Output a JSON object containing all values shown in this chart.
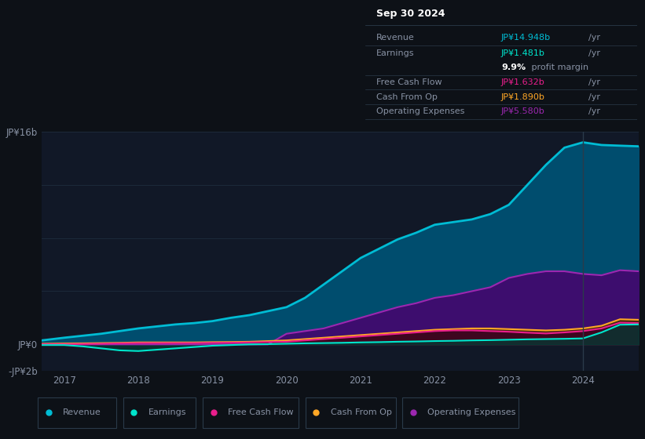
{
  "bg_color": "#0d1117",
  "plot_bg_color": "#111827",
  "grid_color": "#1e2d3d",
  "text_color": "#8892a4",
  "x_years": [
    2016.7,
    2017.0,
    2017.25,
    2017.5,
    2017.75,
    2018.0,
    2018.25,
    2018.5,
    2018.75,
    2019.0,
    2019.25,
    2019.5,
    2019.75,
    2020.0,
    2020.25,
    2020.5,
    2020.75,
    2021.0,
    2021.25,
    2021.5,
    2021.75,
    2022.0,
    2022.25,
    2022.5,
    2022.75,
    2023.0,
    2023.25,
    2023.5,
    2023.75,
    2024.0,
    2024.25,
    2024.5,
    2024.75
  ],
  "revenue": [
    0.3,
    0.5,
    0.65,
    0.8,
    1.0,
    1.2,
    1.35,
    1.5,
    1.6,
    1.75,
    2.0,
    2.2,
    2.5,
    2.8,
    3.5,
    4.5,
    5.5,
    6.5,
    7.2,
    7.9,
    8.4,
    9.0,
    9.2,
    9.4,
    9.8,
    10.5,
    12.0,
    13.5,
    14.8,
    15.2,
    15.0,
    14.948,
    14.9
  ],
  "earnings": [
    -0.05,
    -0.05,
    -0.15,
    -0.3,
    -0.45,
    -0.5,
    -0.4,
    -0.3,
    -0.2,
    -0.1,
    -0.05,
    0.0,
    0.02,
    0.05,
    0.08,
    0.1,
    0.12,
    0.15,
    0.17,
    0.2,
    0.22,
    0.25,
    0.27,
    0.3,
    0.32,
    0.35,
    0.38,
    0.4,
    0.42,
    0.45,
    0.9,
    1.481,
    1.5
  ],
  "free_cash_flow": [
    0.02,
    0.02,
    0.03,
    0.05,
    0.08,
    0.1,
    0.1,
    0.1,
    0.1,
    0.12,
    0.13,
    0.15,
    0.18,
    0.2,
    0.3,
    0.4,
    0.5,
    0.6,
    0.7,
    0.8,
    0.9,
    1.0,
    1.05,
    1.05,
    1.0,
    0.95,
    0.88,
    0.82,
    0.9,
    1.0,
    1.2,
    1.632,
    1.6
  ],
  "cash_from_op": [
    0.05,
    0.07,
    0.08,
    0.1,
    0.12,
    0.15,
    0.15,
    0.15,
    0.15,
    0.17,
    0.18,
    0.2,
    0.25,
    0.3,
    0.4,
    0.5,
    0.6,
    0.7,
    0.8,
    0.9,
    1.0,
    1.1,
    1.15,
    1.2,
    1.2,
    1.15,
    1.1,
    1.05,
    1.1,
    1.2,
    1.4,
    1.89,
    1.85
  ],
  "op_expenses": [
    0.0,
    0.0,
    0.0,
    0.0,
    0.0,
    0.0,
    0.0,
    0.0,
    0.0,
    0.0,
    0.0,
    0.0,
    0.0,
    0.8,
    1.0,
    1.2,
    1.6,
    2.0,
    2.4,
    2.8,
    3.1,
    3.5,
    3.7,
    4.0,
    4.3,
    5.0,
    5.3,
    5.5,
    5.5,
    5.3,
    5.2,
    5.58,
    5.5
  ],
  "revenue_color": "#00bcd4",
  "earnings_color": "#00e5cc",
  "free_cash_flow_color": "#e91e8c",
  "cash_from_op_color": "#ffa726",
  "op_expenses_color": "#9c27b0",
  "revenue_fill": "#004d6e",
  "op_expenses_fill": "#3d0d6e",
  "free_cash_flow_fill": "#3d0022",
  "cash_from_op_fill": "#4a2e00",
  "earnings_fill": "#003d35",
  "ylim_min": -2,
  "ylim_max": 16,
  "ylabel_top": "JP¥16b",
  "ylabel_zero": "JP¥0",
  "ylabel_neg": "-JP¥2b",
  "x_ticks": [
    2017,
    2018,
    2019,
    2020,
    2021,
    2022,
    2023,
    2024
  ],
  "info_box": {
    "date": "Sep 30 2024",
    "revenue_label": "Revenue",
    "revenue_val": "JP¥14.948b",
    "revenue_color": "#00bcd4",
    "earnings_label": "Earnings",
    "earnings_val": "JP¥1.481b",
    "earnings_color": "#00e5cc",
    "fcf_label": "Free Cash Flow",
    "fcf_val": "JP¥1.632b",
    "fcf_color": "#e91e8c",
    "cfop_label": "Cash From Op",
    "cfop_val": "JP¥1.890b",
    "cfop_color": "#ffa726",
    "opex_label": "Operating Expenses",
    "opex_val": "JP¥5.580b",
    "opex_color": "#9c27b0"
  },
  "legend_entries": [
    "Revenue",
    "Earnings",
    "Free Cash Flow",
    "Cash From Op",
    "Operating Expenses"
  ],
  "legend_colors": [
    "#00bcd4",
    "#00e5cc",
    "#e91e8c",
    "#ffa726",
    "#9c27b0"
  ],
  "divider_x": 2024.0
}
